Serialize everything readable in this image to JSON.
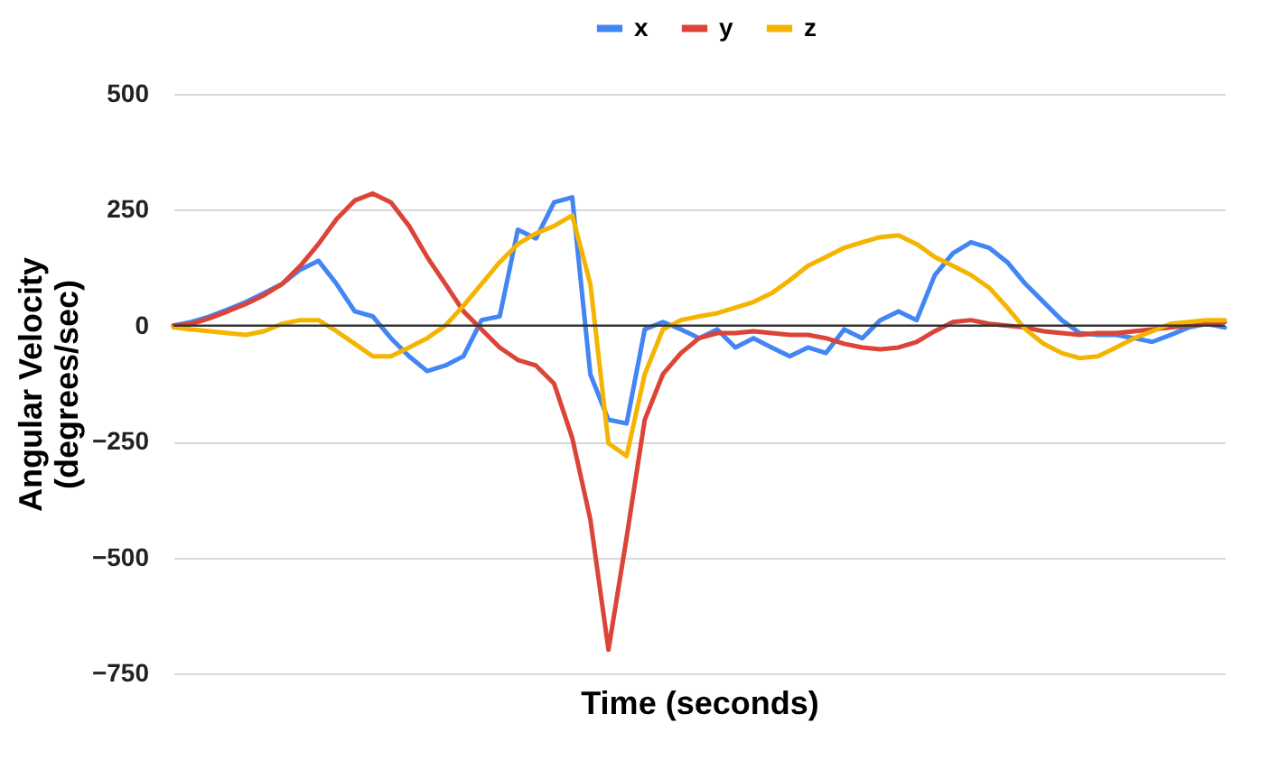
{
  "chart_data": {
    "type": "line",
    "xlabel": "Time (seconds)",
    "ylabel": "Angular Velocity\n(degrees/sec)",
    "categories": [
      null,
      null,
      null,
      null,
      null,
      null,
      null,
      null,
      null,
      null,
      null,
      null,
      null,
      null,
      null,
      null,
      null,
      null,
      null,
      null,
      null,
      null,
      null,
      null,
      null,
      null,
      null,
      null,
      null,
      null,
      null,
      null,
      null,
      null,
      null,
      null,
      null,
      null,
      null,
      null,
      null,
      null,
      null,
      null,
      null,
      null,
      null,
      null,
      null,
      null,
      null,
      null,
      null,
      null,
      null,
      null,
      null,
      null,
      null
    ],
    "series": [
      {
        "name": "x",
        "color": "#4285f4",
        "values": [
          0,
          8,
          20,
          35,
          51,
          70,
          90,
          121,
          140,
          90,
          31,
          20,
          -27,
          -66,
          -98,
          -86,
          -66,
          12,
          20,
          207,
          188,
          266,
          277,
          -105,
          -203,
          -211,
          -8,
          8,
          -8,
          -27,
          -8,
          -47,
          -27,
          -47,
          -66,
          -47,
          -59,
          -8,
          -27,
          12,
          31,
          12,
          109,
          156,
          180,
          168,
          137,
          90,
          51,
          12,
          -16,
          -20,
          -20,
          -27,
          -35,
          -20,
          -4,
          4,
          -4
        ]
      },
      {
        "name": "y",
        "color": "#db4437",
        "values": [
          0,
          4,
          16,
          31,
          47,
          66,
          90,
          129,
          176,
          230,
          270,
          285,
          266,
          215,
          148,
          90,
          31,
          -8,
          -47,
          -74,
          -86,
          -125,
          -242,
          -418,
          -699,
          -457,
          -203,
          -105,
          -59,
          -27,
          -16,
          -16,
          -12,
          -16,
          -20,
          -20,
          -27,
          -39,
          -47,
          -51,
          -47,
          -35,
          -12,
          8,
          12,
          4,
          0,
          -4,
          -12,
          -16,
          -20,
          -16,
          -16,
          -12,
          -8,
          -4,
          0,
          4,
          8
        ]
      },
      {
        "name": "z",
        "color": "#f4b400",
        "values": [
          -4,
          -8,
          -12,
          -16,
          -20,
          -12,
          4,
          12,
          12,
          -12,
          -39,
          -66,
          -66,
          -47,
          -27,
          0,
          43,
          90,
          137,
          176,
          199,
          215,
          238,
          90,
          -254,
          -281,
          -105,
          -8,
          12,
          20,
          27,
          39,
          51,
          70,
          98,
          129,
          148,
          168,
          180,
          191,
          195,
          176,
          148,
          129,
          109,
          82,
          39,
          -8,
          -39,
          -59,
          -70,
          -66,
          -47,
          -27,
          -12,
          4,
          8,
          12,
          12
        ]
      }
    ],
    "ylim": [
      -750,
      500
    ],
    "yticks": [
      -750,
      -500,
      -250,
      0,
      250,
      500
    ],
    "grid": "y",
    "legend": "top",
    "ref_lines": [
      {
        "axis": "y",
        "value": 0,
        "color": "#333333"
      }
    ],
    "line_style": "solid",
    "marker": "none"
  }
}
